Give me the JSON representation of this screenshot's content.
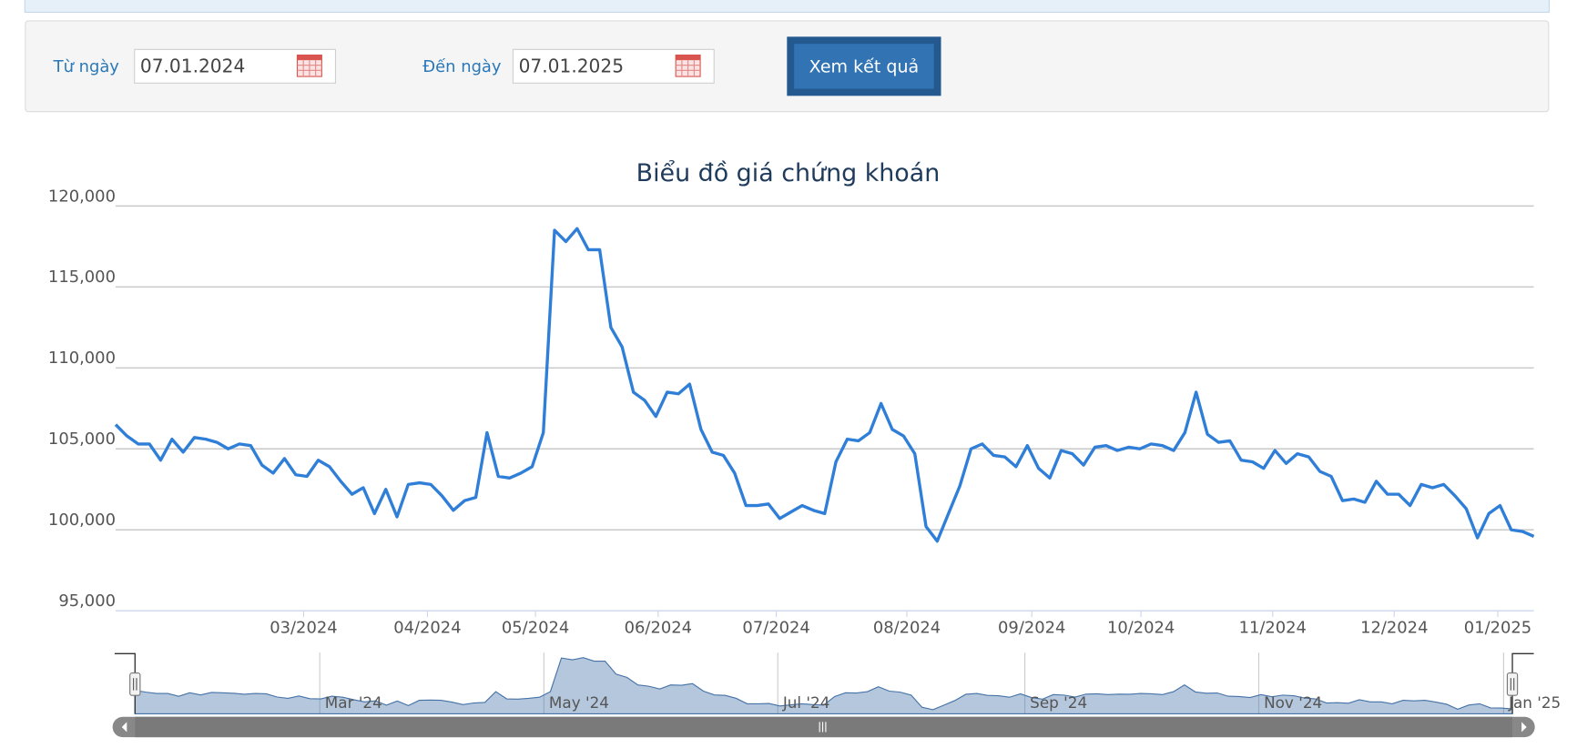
{
  "form": {
    "from_label": "Từ ngày",
    "from_value": "07.01.2024",
    "to_label": "Đến ngày",
    "to_value": "07.01.2025",
    "button": "Xem kết quả"
  },
  "chart_data": {
    "type": "line",
    "title": "Biểu đồ giá chứng khoán",
    "color": "#2f7ed8",
    "grid": true,
    "values": [
      106500,
      105800,
      105300,
      105300,
      104300,
      105600,
      104800,
      105700,
      105600,
      105400,
      105000,
      105300,
      105200,
      104000,
      103500,
      104400,
      103400,
      103300,
      104300,
      103900,
      103000,
      102200,
      102600,
      101000,
      102500,
      100800,
      102800,
      102900,
      102800,
      102100,
      101200,
      101800,
      102000,
      106000,
      103300,
      103200,
      103500,
      103900,
      106000,
      118500,
      117800,
      118600,
      117300,
      117300,
      112500,
      111300,
      108500,
      108000,
      107000,
      108500,
      108400,
      109000,
      106200,
      104800,
      104600,
      103500,
      101500,
      101500,
      101600,
      100700,
      101100,
      101500,
      101200,
      101000,
      104200,
      105600,
      105500,
      106000,
      107800,
      106200,
      105800,
      104700,
      100200,
      99300,
      101000,
      102700,
      105000,
      105300,
      104600,
      104500,
      103900,
      105200,
      103800,
      103200,
      104900,
      104700,
      104000,
      105100,
      105200,
      104900,
      105100,
      105000,
      105300,
      105200,
      104900,
      106000,
      108500,
      105900,
      105400,
      105500,
      104300,
      104200,
      103800,
      104900,
      104100,
      104700,
      104500,
      103600,
      103300,
      101800,
      101900,
      101700,
      103000,
      102200,
      102200,
      101500,
      102800,
      102600,
      102800,
      102100,
      101300,
      99500,
      101000,
      101500,
      100000,
      99900,
      99600
    ],
    "xlim": [
      0,
      126
    ],
    "xticks": [
      {
        "value": 16.7,
        "label": "03/2024"
      },
      {
        "value": 27.7,
        "label": "04/2024"
      },
      {
        "value": 37.3,
        "label": "05/2024"
      },
      {
        "value": 48.2,
        "label": "06/2024"
      },
      {
        "value": 58.7,
        "label": "07/2024"
      },
      {
        "value": 70.3,
        "label": "08/2024"
      },
      {
        "value": 81.4,
        "label": "09/2024"
      },
      {
        "value": 91.1,
        "label": "10/2024"
      },
      {
        "value": 102.8,
        "label": "11/2024"
      },
      {
        "value": 113.6,
        "label": "12/2024"
      },
      {
        "value": 122.8,
        "label": "01/2025"
      }
    ],
    "ylim": [
      95000,
      120000
    ],
    "yticks": [
      {
        "value": 95000,
        "label": "95,000"
      },
      {
        "value": 100000,
        "label": "100,000"
      },
      {
        "value": 105000,
        "label": "105,000"
      },
      {
        "value": 110000,
        "label": "110,000"
      },
      {
        "value": 115000,
        "label": "115,000"
      },
      {
        "value": 120000,
        "label": "120,000"
      }
    ],
    "navigator_xticks": [
      {
        "value": 16.9,
        "label": "Mar '24"
      },
      {
        "value": 37.4,
        "label": "May '24"
      },
      {
        "value": 58.8,
        "label": "Jul '24"
      },
      {
        "value": 81.4,
        "label": "Sep '24"
      },
      {
        "value": 102.8,
        "label": "Nov '24"
      },
      {
        "value": 125.2,
        "label": "Jan '25"
      }
    ]
  }
}
